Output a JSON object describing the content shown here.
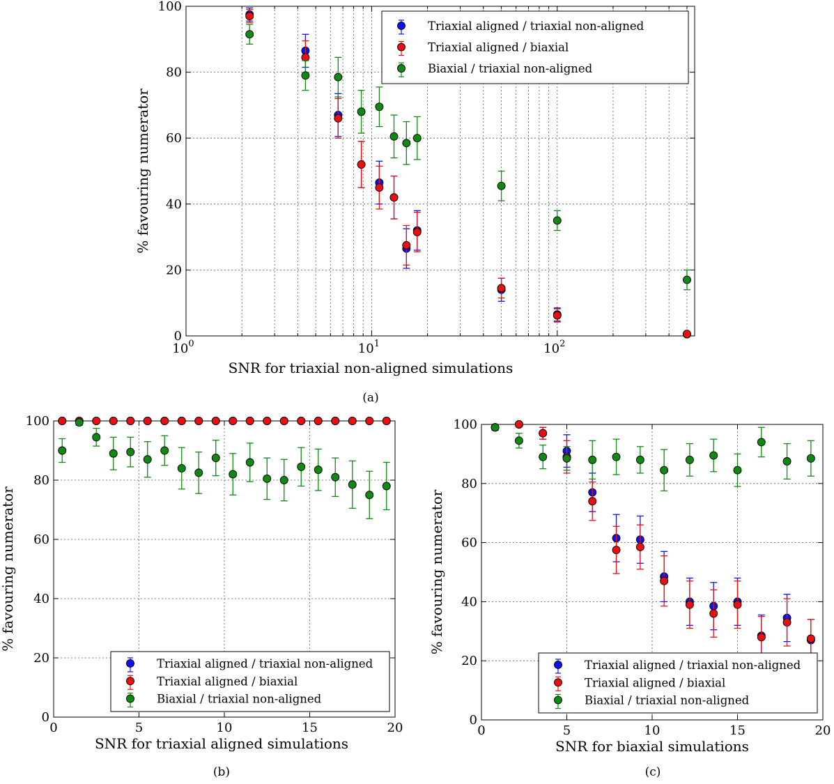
{
  "colors": {
    "blue": "#1010e8",
    "red": "#e81010",
    "green": "#118811"
  },
  "chart_data": [
    {
      "id": "a",
      "caption": "(a)",
      "type": "scatter",
      "xscale": "log",
      "xlabel": "SNR for triaxial non-aligned simulations",
      "ylabel": "% favouring numerator",
      "xlim": [
        1,
        550
      ],
      "ylim": [
        0,
        100
      ],
      "xticks": [
        {
          "v": 1,
          "b": "10",
          "e": "0"
        },
        {
          "v": 10,
          "b": "10",
          "e": "1"
        },
        {
          "v": 100,
          "b": "10",
          "e": "2"
        }
      ],
      "yticks": [
        0,
        20,
        40,
        60,
        80,
        100
      ],
      "grid": true,
      "legend_position": "top-right",
      "series": [
        {
          "name": "Triaxial aligned / triaxial non-aligned",
          "color": "blue",
          "x": [
            2.2,
            4.4,
            6.6,
            8.8,
            11,
            13.2,
            15.4,
            17.6,
            50,
            100,
            500
          ],
          "y": [
            97.5,
            86.5,
            67,
            52,
            46.5,
            42,
            26.5,
            32,
            14,
            6.5,
            0.5
          ],
          "err": [
            2,
            5,
            6.5,
            7,
            6.5,
            6.5,
            6,
            6,
            3.5,
            2,
            0.5
          ]
        },
        {
          "name": "Triaxial aligned / biaxial",
          "color": "red",
          "x": [
            2.2,
            4.4,
            6.6,
            8.8,
            11,
            13.2,
            15.4,
            17.6,
            50,
            100,
            500
          ],
          "y": [
            97,
            84.5,
            66,
            52,
            45,
            42,
            27.5,
            31.5,
            14.5,
            6.2,
            0.6
          ],
          "err": [
            2,
            5,
            6,
            7,
            6.5,
            6.5,
            6,
            6,
            3,
            2,
            0.5
          ]
        },
        {
          "name": "Biaxial / triaxial non-aligned",
          "color": "green",
          "x": [
            2.2,
            4.4,
            6.6,
            8.8,
            11,
            13.2,
            15.4,
            17.6,
            50,
            100,
            500
          ],
          "y": [
            91.5,
            79,
            78.5,
            68,
            69.5,
            60.5,
            58.5,
            60,
            45.5,
            35,
            17
          ],
          "err": [
            3,
            4.5,
            6,
            6.5,
            6,
            6.5,
            6.5,
            6.5,
            4.5,
            3,
            3
          ]
        }
      ]
    },
    {
      "id": "b",
      "caption": "(b)",
      "type": "scatter",
      "xscale": "linear",
      "xlabel": "SNR for triaxial aligned simulations",
      "ylabel": "% favouring numerator",
      "xlim": [
        0,
        20
      ],
      "ylim": [
        0,
        100
      ],
      "xticks": [
        0,
        5,
        10,
        15,
        20
      ],
      "yticks": [
        0,
        20,
        40,
        60,
        80,
        100
      ],
      "grid": true,
      "legend_position": "bottom-right",
      "series": [
        {
          "name": "Triaxial aligned / triaxial non-aligned",
          "color": "blue",
          "x": [
            0.5,
            1.5,
            2.5,
            3.5,
            4.5,
            5.5,
            6.5,
            7.5,
            8.5,
            9.5,
            10.5,
            11.5,
            12.5,
            13.5,
            14.5,
            15.5,
            16.5,
            17.5,
            18.5,
            19.5
          ],
          "y": [
            100,
            100,
            100,
            100,
            100,
            100,
            100,
            100,
            100,
            100,
            100,
            100,
            100,
            100,
            100,
            100,
            100,
            100,
            100,
            100
          ],
          "err": [
            0,
            0,
            0,
            0,
            0,
            0,
            0,
            0,
            0,
            0,
            0,
            0,
            0,
            0,
            0,
            0,
            0,
            0,
            0,
            0
          ]
        },
        {
          "name": "Triaxial aligned / biaxial",
          "color": "red",
          "x": [
            0.5,
            1.5,
            2.5,
            3.5,
            4.5,
            5.5,
            6.5,
            7.5,
            8.5,
            9.5,
            10.5,
            11.5,
            12.5,
            13.5,
            14.5,
            15.5,
            16.5,
            17.5,
            18.5,
            19.5
          ],
          "y": [
            100,
            100,
            100,
            100,
            100,
            100,
            100,
            100,
            100,
            100,
            100,
            100,
            100,
            100,
            100,
            100,
            100,
            100,
            100,
            100
          ],
          "err": [
            0,
            0,
            0,
            0,
            0,
            0,
            0,
            0,
            0,
            0,
            0,
            0,
            0,
            0,
            0,
            0,
            0,
            0,
            0,
            0
          ]
        },
        {
          "name": "Biaxial / triaxial non-aligned",
          "color": "green",
          "x": [
            0.5,
            1.5,
            2.5,
            3.5,
            4.5,
            5.5,
            6.5,
            7.5,
            8.5,
            9.5,
            10.5,
            11.5,
            12.5,
            13.5,
            14.5,
            15.5,
            16.5,
            17.5,
            18.5,
            19.5
          ],
          "y": [
            90,
            99.5,
            94.5,
            89,
            89.5,
            87,
            90,
            84,
            82.5,
            87.5,
            82,
            86,
            80.5,
            80,
            84.5,
            83.5,
            81,
            78.5,
            75,
            78
          ],
          "err": [
            4,
            1,
            3,
            5.5,
            5,
            6,
            5,
            7,
            7,
            6,
            7,
            6.5,
            7,
            7,
            6.5,
            7,
            6.5,
            8,
            8,
            8
          ]
        }
      ]
    },
    {
      "id": "c",
      "caption": "(c)",
      "type": "scatter",
      "xscale": "linear",
      "xlabel": "SNR for biaxial simulations",
      "ylabel": "% favouring numerator",
      "xlim": [
        0,
        20
      ],
      "ylim": [
        0,
        100
      ],
      "xticks": [
        0,
        5,
        10,
        15,
        20
      ],
      "yticks": [
        0,
        20,
        40,
        60,
        80,
        100
      ],
      "grid": true,
      "legend_position": "bottom-right",
      "series": [
        {
          "name": "Triaxial aligned / triaxial non-aligned",
          "color": "blue",
          "x": [
            0.8,
            2.2,
            3.6,
            5,
            6.5,
            7.9,
            9.3,
            10.7,
            12.2,
            13.6,
            15,
            16.4,
            17.9,
            19.3
          ],
          "y": [
            99,
            100,
            97,
            91,
            77,
            61.5,
            61,
            48.5,
            40,
            38.5,
            40,
            28.5,
            34.5,
            27
          ],
          "err": [
            1,
            0.5,
            2,
            5.5,
            6.5,
            8,
            8,
            8.5,
            8,
            8,
            8,
            7,
            8,
            7
          ]
        },
        {
          "name": "Triaxial aligned / biaxial",
          "color": "red",
          "x": [
            0.8,
            2.2,
            3.6,
            5,
            6.5,
            7.9,
            9.3,
            10.7,
            12.2,
            13.6,
            15,
            16.4,
            17.9,
            19.3
          ],
          "y": [
            99,
            100,
            97,
            89,
            74,
            57.5,
            58.5,
            47,
            39,
            36,
            39,
            28,
            33,
            27.5
          ],
          "err": [
            1,
            0.5,
            2,
            5.5,
            6.5,
            8,
            7.5,
            8.5,
            8,
            8,
            8,
            7,
            8,
            6.5
          ]
        },
        {
          "name": "Biaxial / triaxial non-aligned",
          "color": "green",
          "x": [
            0.8,
            2.2,
            3.6,
            5,
            6.5,
            7.9,
            9.3,
            10.7,
            12.2,
            13.6,
            15,
            16.4,
            17.9,
            19.3
          ],
          "y": [
            99,
            94.5,
            89,
            88.5,
            88,
            89,
            88,
            84.5,
            88,
            89.5,
            84.5,
            94,
            87.5,
            88.5
          ],
          "err": [
            1,
            2.5,
            4,
            4,
            6.5,
            6,
            4.5,
            7,
            5.5,
            5.5,
            5.5,
            5,
            6,
            6
          ]
        }
      ]
    }
  ]
}
